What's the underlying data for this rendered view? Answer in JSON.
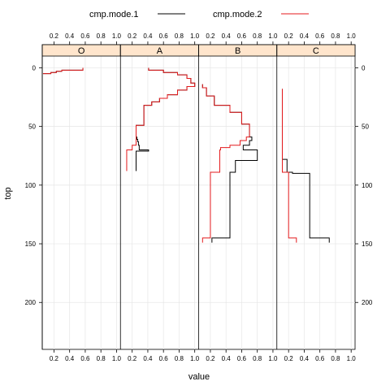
{
  "chart_data": {
    "type": "line",
    "step": true,
    "xlabel": "value",
    "ylabel": "top",
    "xlim": [
      0.05,
      1.05
    ],
    "ylim": [
      240,
      -10
    ],
    "y_reversed": true,
    "x_ticks": [
      0.2,
      0.4,
      0.6,
      0.8,
      1.0
    ],
    "x_tick_labels": [
      "0.2",
      "0.4",
      "0.6",
      "0.8",
      "1.0"
    ],
    "y_ticks": [
      0,
      50,
      100,
      150,
      200
    ],
    "y_tick_labels": [
      "0",
      "50",
      "100",
      "150",
      "200"
    ],
    "grid": true,
    "legend_position": "top",
    "legend": [
      {
        "name": "cmp.mode.1",
        "color": "#000000"
      },
      {
        "name": "cmp.mode.2",
        "color": "#e41a1c"
      }
    ],
    "panels": [
      {
        "label": "O",
        "series": [
          {
            "name": "cmp.mode.1",
            "points": [
              [
                0.06,
                5
              ],
              [
                0.16,
                5
              ],
              [
                0.16,
                4
              ],
              [
                0.23,
                4
              ],
              [
                0.23,
                3
              ],
              [
                0.3,
                3
              ],
              [
                0.3,
                2
              ],
              [
                0.57,
                2
              ],
              [
                0.57,
                0
              ]
            ]
          },
          {
            "name": "cmp.mode.2",
            "points": [
              [
                0.06,
                5
              ],
              [
                0.16,
                5
              ],
              [
                0.16,
                4
              ],
              [
                0.23,
                4
              ],
              [
                0.23,
                3
              ],
              [
                0.3,
                3
              ],
              [
                0.3,
                2
              ],
              [
                0.57,
                2
              ],
              [
                0.57,
                0
              ]
            ]
          }
        ]
      },
      {
        "label": "A",
        "series": [
          {
            "name": "cmp.mode.1",
            "points": [
              [
                0.41,
                0
              ],
              [
                0.41,
                2
              ],
              [
                0.6,
                2
              ],
              [
                0.6,
                4
              ],
              [
                0.78,
                4
              ],
              [
                0.78,
                6
              ],
              [
                0.9,
                6
              ],
              [
                0.9,
                9
              ],
              [
                0.95,
                9
              ],
              [
                0.95,
                13
              ],
              [
                1.0,
                13
              ],
              [
                1.0,
                16
              ],
              [
                0.9,
                16
              ],
              [
                0.9,
                19
              ],
              [
                0.78,
                19
              ],
              [
                0.78,
                23
              ],
              [
                0.65,
                23
              ],
              [
                0.65,
                26
              ],
              [
                0.55,
                26
              ],
              [
                0.55,
                29
              ],
              [
                0.45,
                29
              ],
              [
                0.45,
                32
              ],
              [
                0.35,
                32
              ],
              [
                0.35,
                49
              ],
              [
                0.25,
                49
              ],
              [
                0.25,
                59
              ],
              [
                0.26,
                59
              ],
              [
                0.26,
                61
              ],
              [
                0.27,
                61
              ],
              [
                0.27,
                63
              ],
              [
                0.28,
                63
              ],
              [
                0.28,
                66
              ],
              [
                0.29,
                66
              ],
              [
                0.29,
                70
              ],
              [
                0.41,
                70
              ],
              [
                0.41,
                71
              ],
              [
                0.25,
                71
              ],
              [
                0.25,
                88
              ]
            ]
          },
          {
            "name": "cmp.mode.2",
            "points": [
              [
                0.41,
                0
              ],
              [
                0.41,
                2
              ],
              [
                0.6,
                2
              ],
              [
                0.6,
                4
              ],
              [
                0.78,
                4
              ],
              [
                0.78,
                6
              ],
              [
                0.9,
                6
              ],
              [
                0.9,
                9
              ],
              [
                0.95,
                9
              ],
              [
                0.95,
                13
              ],
              [
                1.0,
                13
              ],
              [
                1.0,
                16
              ],
              [
                0.9,
                16
              ],
              [
                0.9,
                19
              ],
              [
                0.78,
                19
              ],
              [
                0.78,
                23
              ],
              [
                0.65,
                23
              ],
              [
                0.65,
                26
              ],
              [
                0.55,
                26
              ],
              [
                0.55,
                29
              ],
              [
                0.45,
                29
              ],
              [
                0.45,
                32
              ],
              [
                0.35,
                32
              ],
              [
                0.35,
                49
              ],
              [
                0.25,
                49
              ],
              [
                0.25,
                66
              ],
              [
                0.2,
                66
              ],
              [
                0.2,
                70
              ],
              [
                0.13,
                70
              ],
              [
                0.13,
                88
              ]
            ]
          }
        ]
      },
      {
        "label": "B",
        "series": [
          {
            "name": "cmp.mode.1",
            "points": [
              [
                0.1,
                14
              ],
              [
                0.1,
                17
              ],
              [
                0.15,
                17
              ],
              [
                0.15,
                24
              ],
              [
                0.25,
                24
              ],
              [
                0.25,
                32
              ],
              [
                0.45,
                32
              ],
              [
                0.45,
                38
              ],
              [
                0.6,
                38
              ],
              [
                0.6,
                48
              ],
              [
                0.7,
                48
              ],
              [
                0.7,
                59
              ],
              [
                0.73,
                59
              ],
              [
                0.73,
                62
              ],
              [
                0.7,
                62
              ],
              [
                0.7,
                66
              ],
              [
                0.62,
                66
              ],
              [
                0.62,
                70
              ],
              [
                0.8,
                70
              ],
              [
                0.8,
                79
              ],
              [
                0.52,
                79
              ],
              [
                0.52,
                89
              ],
              [
                0.45,
                89
              ],
              [
                0.45,
                145
              ],
              [
                0.22,
                145
              ],
              [
                0.22,
                149
              ]
            ]
          },
          {
            "name": "cmp.mode.2",
            "points": [
              [
                0.1,
                14
              ],
              [
                0.1,
                17
              ],
              [
                0.15,
                17
              ],
              [
                0.15,
                24
              ],
              [
                0.25,
                24
              ],
              [
                0.25,
                32
              ],
              [
                0.45,
                32
              ],
              [
                0.45,
                38
              ],
              [
                0.6,
                38
              ],
              [
                0.6,
                48
              ],
              [
                0.7,
                48
              ],
              [
                0.7,
                59
              ],
              [
                0.66,
                59
              ],
              [
                0.66,
                62
              ],
              [
                0.58,
                62
              ],
              [
                0.58,
                66
              ],
              [
                0.45,
                66
              ],
              [
                0.45,
                68
              ],
              [
                0.33,
                68
              ],
              [
                0.33,
                70
              ],
              [
                0.32,
                70
              ],
              [
                0.32,
                89
              ],
              [
                0.2,
                89
              ],
              [
                0.2,
                145
              ],
              [
                0.1,
                145
              ],
              [
                0.1,
                149
              ]
            ]
          }
        ]
      },
      {
        "label": "C",
        "series": [
          {
            "name": "cmp.mode.1",
            "points": [
              [
                0.12,
                18
              ],
              [
                0.12,
                78
              ],
              [
                0.18,
                78
              ],
              [
                0.18,
                89
              ],
              [
                0.25,
                89
              ],
              [
                0.25,
                90
              ],
              [
                0.47,
                90
              ],
              [
                0.47,
                145
              ],
              [
                0.72,
                145
              ],
              [
                0.72,
                149
              ]
            ]
          },
          {
            "name": "cmp.mode.2",
            "points": [
              [
                0.12,
                18
              ],
              [
                0.12,
                89
              ],
              [
                0.2,
                89
              ],
              [
                0.2,
                145
              ],
              [
                0.3,
                145
              ],
              [
                0.3,
                149
              ]
            ]
          }
        ]
      }
    ]
  }
}
